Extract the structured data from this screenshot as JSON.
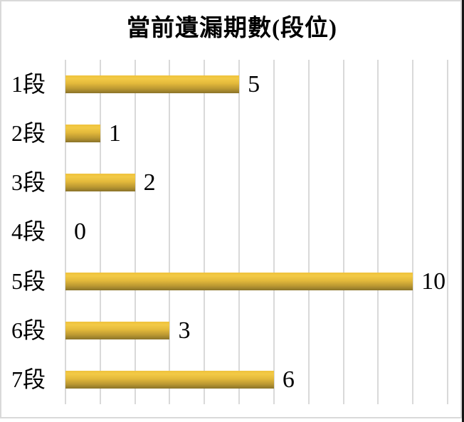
{
  "title": "當前遺漏期數(段位)",
  "chart_data": {
    "type": "bar",
    "orientation": "horizontal",
    "title": "當前遺漏期數(段位)",
    "categories": [
      "1段",
      "2段",
      "3段",
      "4段",
      "5段",
      "6段",
      "7段"
    ],
    "values": [
      5,
      1,
      2,
      0,
      10,
      3,
      6
    ],
    "xlabel": "",
    "ylabel": "",
    "xlim": [
      0,
      11
    ],
    "grid": "vertical",
    "gridline_interval": 1,
    "data_labels": [
      5,
      1,
      2,
      0,
      10,
      3,
      6
    ],
    "legend": "none"
  },
  "colors": {
    "bar_top": "#f3ca46",
    "bar_bottom": "#8a7329",
    "gridline": "#d9d9d9",
    "frame_border": "#d9d9d9",
    "right_edge": "#161616",
    "text": "#000000",
    "background": "#ffffff"
  }
}
